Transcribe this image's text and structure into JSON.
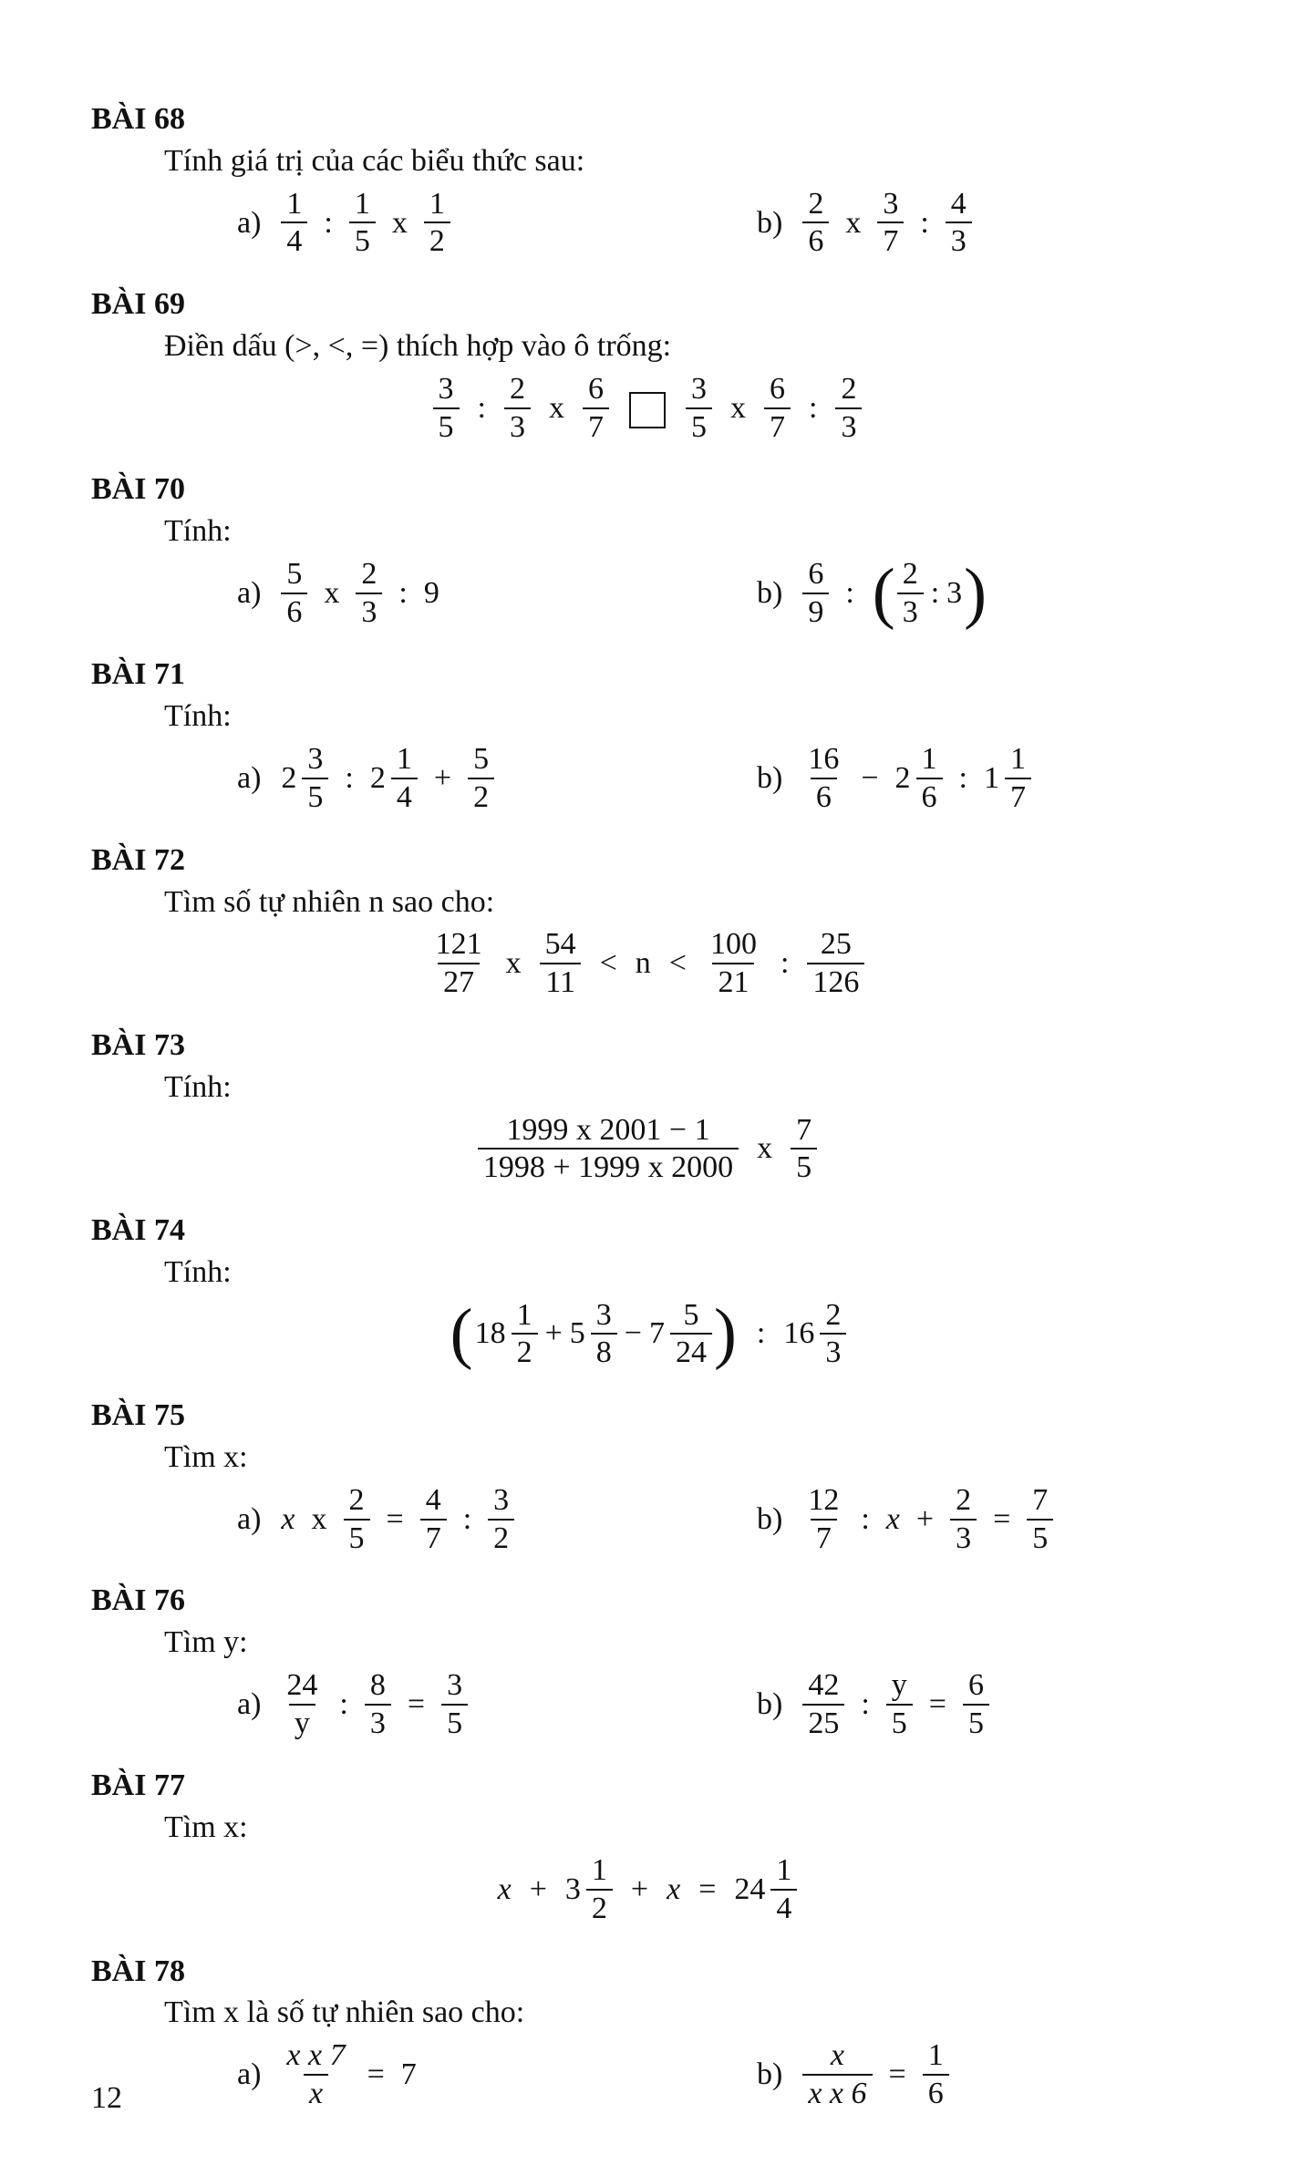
{
  "page_number": "12",
  "ex68": {
    "title": "BÀI 68",
    "prompt": "Tính giá trị của các biểu thức sau:",
    "a_label": "a)",
    "b_label": "b)",
    "a": {
      "f1n": "1",
      "f1d": "4",
      "op1": ":",
      "f2n": "1",
      "f2d": "5",
      "op2": "x",
      "f3n": "1",
      "f3d": "2"
    },
    "b": {
      "f1n": "2",
      "f1d": "6",
      "op1": "x",
      "f2n": "3",
      "f2d": "7",
      "op2": ":",
      "f3n": "4",
      "f3d": "3"
    }
  },
  "ex69": {
    "title": "BÀI 69",
    "prompt": "Điền dấu (>, <, =) thích hợp vào ô trống:",
    "left": {
      "f1n": "3",
      "f1d": "5",
      "op1": ":",
      "f2n": "2",
      "f2d": "3",
      "op2": "x",
      "f3n": "6",
      "f3d": "7"
    },
    "right": {
      "f1n": "3",
      "f1d": "5",
      "op1": "x",
      "f2n": "6",
      "f2d": "7",
      "op2": ":",
      "f3n": "2",
      "f3d": "3"
    }
  },
  "ex70": {
    "title": "BÀI 70",
    "prompt": "Tính:",
    "a_label": "a)",
    "b_label": "b)",
    "a": {
      "f1n": "5",
      "f1d": "6",
      "op1": "x",
      "f2n": "2",
      "f2d": "3",
      "op2": ":",
      "t": "9"
    },
    "b": {
      "f1n": "6",
      "f1d": "9",
      "op1": ":",
      "pf1n": "2",
      "pf1d": "3",
      "pop": ":",
      "pt": "3"
    }
  },
  "ex71": {
    "title": "BÀI 71",
    "prompt": "Tính:",
    "a_label": "a)",
    "b_label": "b)",
    "a": {
      "m1w": "2",
      "m1n": "3",
      "m1d": "5",
      "op1": ":",
      "m2w": "2",
      "m2n": "1",
      "m2d": "4",
      "op2": "+",
      "f3n": "5",
      "f3d": "2"
    },
    "b": {
      "f1n": "16",
      "f1d": "6",
      "op1": "−",
      "m2w": "2",
      "m2n": "1",
      "m2d": "6",
      "op2": ":",
      "m3w": "1",
      "m3n": "1",
      "m3d": "7"
    }
  },
  "ex72": {
    "title": "BÀI 72",
    "prompt": "Tìm số tự nhiên n sao cho:",
    "f1n": "121",
    "f1d": "27",
    "op1": "x",
    "f2n": "54",
    "f2d": "11",
    "lt1": "<",
    "var": "n",
    "lt2": "<",
    "f3n": "100",
    "f3d": "21",
    "op2": ":",
    "f4n": "25",
    "f4d": "126"
  },
  "ex73": {
    "title": "BÀI 73",
    "prompt": "Tính:",
    "big_num": "1999 x 2001 − 1",
    "big_den": "1998 + 1999 x 2000",
    "op": "x",
    "f2n": "7",
    "f2d": "5"
  },
  "ex74": {
    "title": "BÀI 74",
    "prompt": "Tính:",
    "m1w": "18",
    "m1n": "1",
    "m1d": "2",
    "op1": "+",
    "m2w": "5",
    "m2n": "3",
    "m2d": "8",
    "op2": "−",
    "m3w": "7",
    "m3n": "5",
    "m3d": "24",
    "opOut": ":",
    "m4w": "16",
    "m4n": "2",
    "m4d": "3"
  },
  "ex75": {
    "title": "BÀI 75",
    "prompt": "Tìm x:",
    "a_label": "a)",
    "b_label": "b)",
    "a": {
      "lead": "x",
      "op0": "x",
      "f1n": "2",
      "f1d": "5",
      "eq": "=",
      "f2n": "4",
      "f2d": "7",
      "op2": ":",
      "f3n": "3",
      "f3d": "2"
    },
    "b": {
      "f1n": "12",
      "f1d": "7",
      "op1": ":",
      "var": "x",
      "op2": "+",
      "f2n": "2",
      "f2d": "3",
      "eq": "=",
      "f3n": "7",
      "f3d": "5"
    }
  },
  "ex76": {
    "title": "BÀI 76",
    "prompt": "Tìm y:",
    "a_label": "a)",
    "b_label": "b)",
    "a": {
      "f1n": "24",
      "f1d": "y",
      "op1": ":",
      "f2n": "8",
      "f2d": "3",
      "eq": "=",
      "f3n": "3",
      "f3d": "5"
    },
    "b": {
      "f1n": "42",
      "f1d": "25",
      "op1": ":",
      "f2n": "y",
      "f2d": "5",
      "eq": "=",
      "f3n": "6",
      "f3d": "5"
    }
  },
  "ex77": {
    "title": "BÀI 77",
    "prompt": "Tìm x:",
    "var1": "x",
    "op1": "+",
    "m1w": "3",
    "m1n": "1",
    "m1d": "2",
    "op2": "+",
    "var2": "x",
    "eq": "=",
    "m2w": "24",
    "m2n": "1",
    "m2d": "4"
  },
  "ex78": {
    "title": "BÀI 78",
    "prompt": "Tìm x là số tự nhiên sao cho:",
    "a_label": "a)",
    "b_label": "b)",
    "a": {
      "num": "x x 7",
      "den": "x",
      "eq": "=",
      "rhs": "7"
    },
    "b": {
      "f1n": "x",
      "f1d": "x x 6",
      "eq": "=",
      "f2n": "1",
      "f2d": "6"
    }
  }
}
